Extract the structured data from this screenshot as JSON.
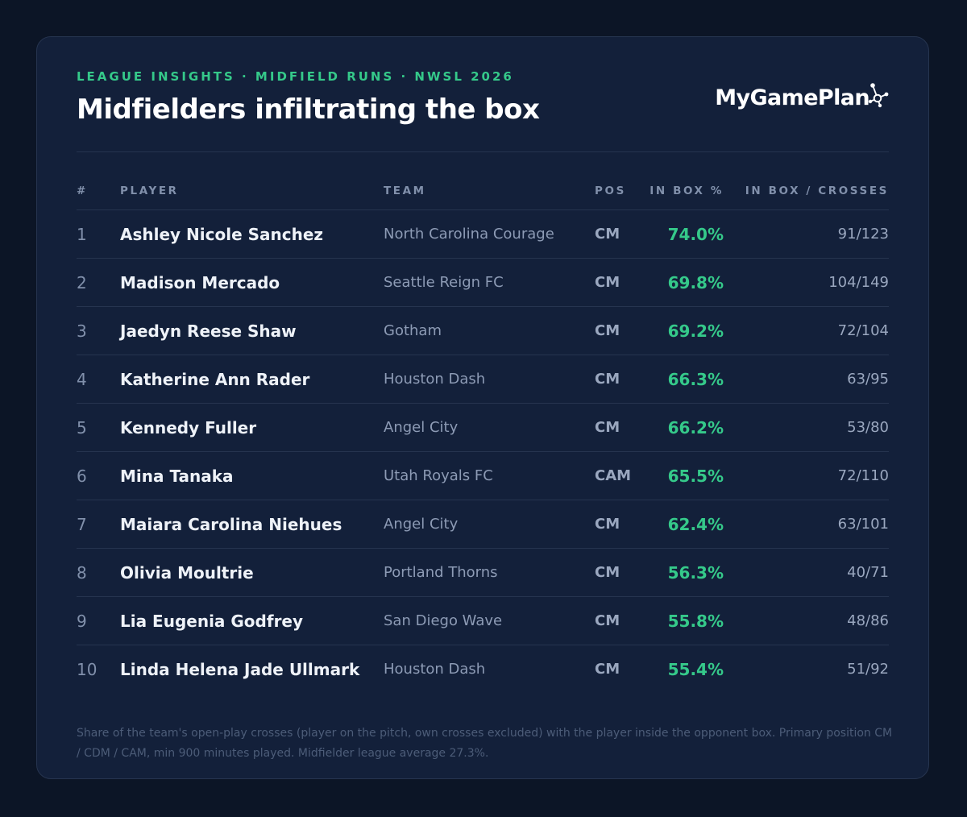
{
  "header": {
    "eyebrow": "LEAGUE INSIGHTS · MIDFIELD RUNS · NWSL 2026",
    "title": "Midfielders infiltrating the box",
    "brand": "MyGamePlan"
  },
  "table": {
    "columns": [
      "#",
      "PLAYER",
      "TEAM",
      "POS",
      "IN BOX %",
      "IN BOX / CROSSES"
    ],
    "rows": [
      {
        "rank": "1",
        "player": "Ashley Nicole Sanchez",
        "team": "North Carolina Courage",
        "pos": "CM",
        "pct": "74.0%",
        "ratio": "91/123"
      },
      {
        "rank": "2",
        "player": "Madison Mercado",
        "team": "Seattle Reign FC",
        "pos": "CM",
        "pct": "69.8%",
        "ratio": "104/149"
      },
      {
        "rank": "3",
        "player": "Jaedyn Reese Shaw",
        "team": "Gotham",
        "pos": "CM",
        "pct": "69.2%",
        "ratio": "72/104"
      },
      {
        "rank": "4",
        "player": "Katherine Ann Rader",
        "team": "Houston Dash",
        "pos": "CM",
        "pct": "66.3%",
        "ratio": "63/95"
      },
      {
        "rank": "5",
        "player": "Kennedy Fuller",
        "team": "Angel City",
        "pos": "CM",
        "pct": "66.2%",
        "ratio": "53/80"
      },
      {
        "rank": "6",
        "player": "Mina Tanaka",
        "team": "Utah Royals FC",
        "pos": "CAM",
        "pct": "65.5%",
        "ratio": "72/110"
      },
      {
        "rank": "7",
        "player": "Maiara Carolina Niehues",
        "team": "Angel City",
        "pos": "CM",
        "pct": "62.4%",
        "ratio": "63/101"
      },
      {
        "rank": "8",
        "player": "Olivia Moultrie",
        "team": "Portland Thorns",
        "pos": "CM",
        "pct": "56.3%",
        "ratio": "40/71"
      },
      {
        "rank": "9",
        "player": "Lia Eugenia Godfrey",
        "team": "San Diego Wave",
        "pos": "CM",
        "pct": "55.8%",
        "ratio": "48/86"
      },
      {
        "rank": "10",
        "player": "Linda Helena Jade Ullmark",
        "team": "Houston Dash",
        "pos": "CM",
        "pct": "55.4%",
        "ratio": "51/92"
      }
    ]
  },
  "footnote": "Share of the team's open-play crosses (player on the pitch, own crosses excluded) with the player inside the opponent box. Primary position CM / CDM / CAM, min 900 minutes played. Midfielder league average 27.3%.",
  "colors": {
    "background": "#0c1526",
    "card": "#13203a",
    "accent": "#35c98a",
    "text": "#eef2f8",
    "muted": "#8190ab"
  },
  "icons": {
    "brand": "constellation-logo-icon"
  }
}
